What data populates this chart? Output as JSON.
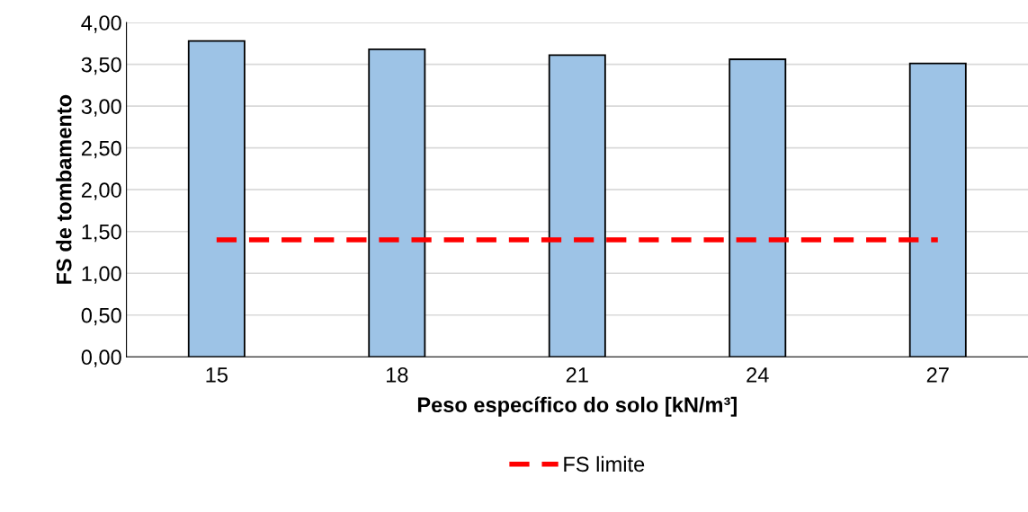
{
  "chart_data": {
    "type": "bar",
    "xlabel": "Peso específico do solo [kN/m³]",
    "ylabel": "FS de tombamento",
    "categories": [
      "15",
      "18",
      "21",
      "24",
      "27"
    ],
    "series": [
      {
        "color": "#9dc3e6",
        "values": [
          3.78,
          3.68,
          3.61,
          3.56,
          3.51
        ]
      },
      {
        "type": "line",
        "name": "FS limite",
        "color": "#ff0000",
        "line_style": "dashed",
        "values": [
          1.4,
          1.4,
          1.4,
          1.4,
          1.4
        ]
      }
    ],
    "ylim": [
      0,
      4
    ],
    "yticks": [
      {
        "value": 0,
        "label": "0,00"
      },
      {
        "value": 0.5,
        "label": "0,50"
      },
      {
        "value": 1,
        "label": "1,00"
      },
      {
        "value": 1.5,
        "label": "1,50"
      },
      {
        "value": 2,
        "label": "2,00"
      },
      {
        "value": 2.5,
        "label": "2,50"
      },
      {
        "value": 3,
        "label": "3,00"
      },
      {
        "value": 3.5,
        "label": "3,50"
      },
      {
        "value": 4,
        "label": "4,00"
      }
    ],
    "grid": "y",
    "legend": "bottom"
  }
}
